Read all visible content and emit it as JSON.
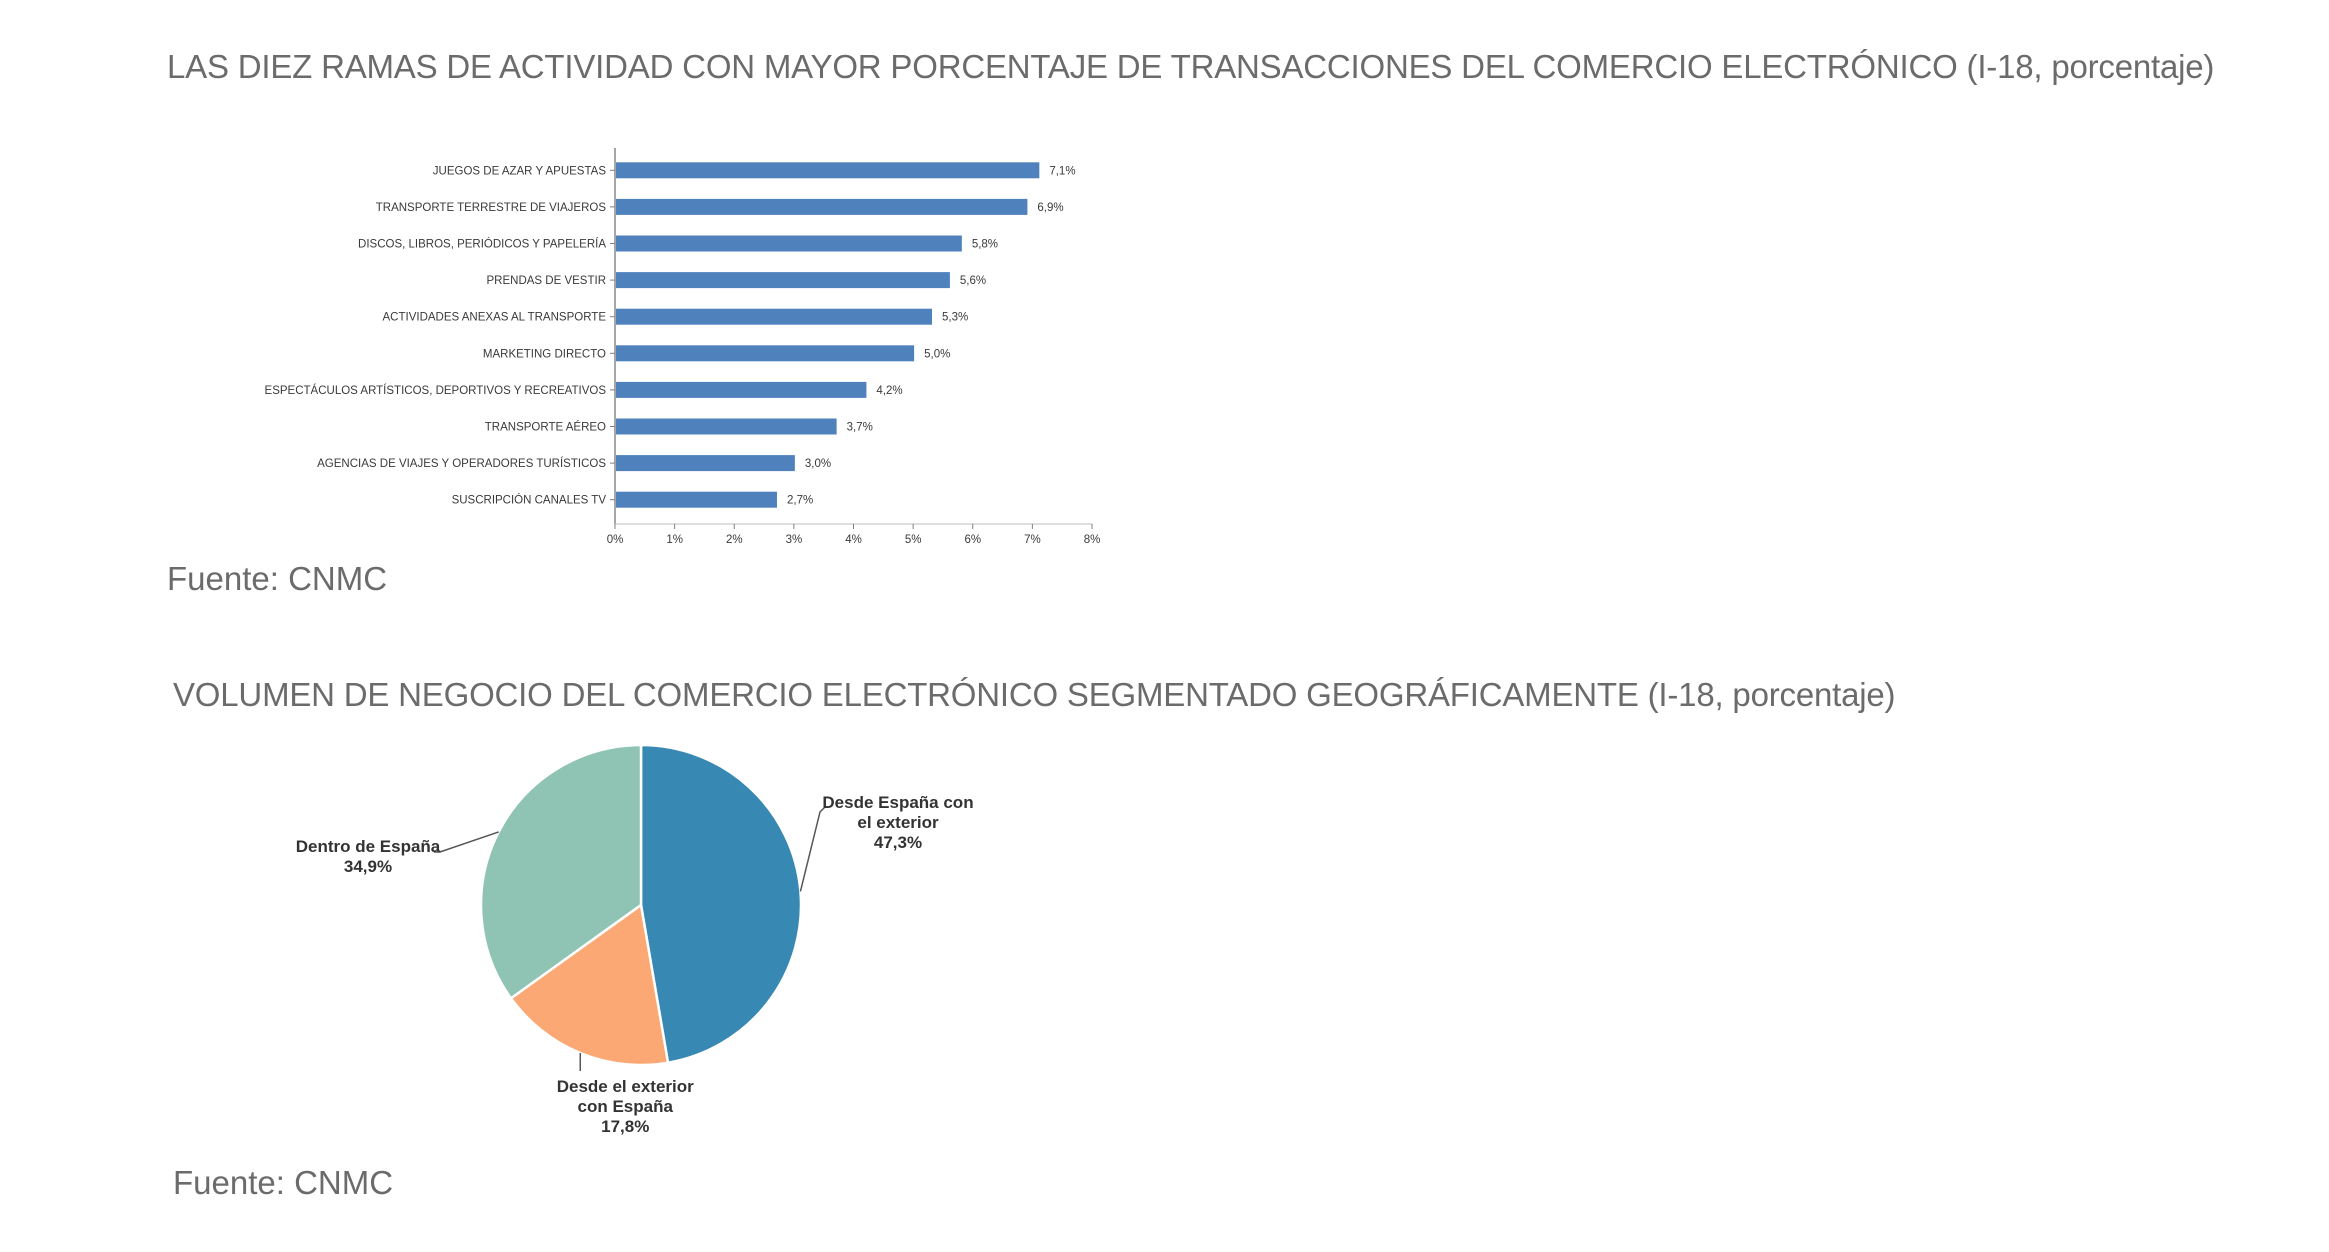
{
  "charts": {
    "bar": {
      "heading": "LAS DIEZ RAMAS DE ACTIVIDAD CON MAYOR PORCENTAJE DE TRANSACCIONES DEL COMERCIO ELECTRÓNICO (I-18, porcentaje)",
      "source": "Fuente: CNMC"
    },
    "pie": {
      "heading": "VOLUMEN DE NEGOCIO DEL COMERCIO ELECTRÓNICO SEGMENTADO GEOGRÁFICAMENTE (I-18, porcentaje)",
      "source": "Fuente: CNMC"
    }
  },
  "chart_data": [
    {
      "type": "bar",
      "orientation": "horizontal",
      "title": "LAS DIEZ RAMAS DE ACTIVIDAD CON MAYOR PORCENTAJE DE TRANSACCIONES DEL COMERCIO ELECTRÓNICO (I-18, porcentaje)",
      "categories": [
        "JUEGOS DE AZAR Y APUESTAS",
        "TRANSPORTE TERRESTRE DE VIAJEROS",
        "DISCOS, LIBROS, PERIÓDICOS Y PAPELERÍA",
        "PRENDAS DE VESTIR",
        "ACTIVIDADES ANEXAS AL TRANSPORTE",
        "MARKETING DIRECTO",
        "ESPECTÁCULOS ARTÍSTICOS, DEPORTIVOS Y RECREATIVOS",
        "TRANSPORTE AÉREO",
        "AGENCIAS DE VIAJES Y OPERADORES TURÍSTICOS",
        "SUSCRIPCIÓN CANALES TV"
      ],
      "values": [
        7.1,
        6.9,
        5.8,
        5.6,
        5.3,
        5.0,
        4.2,
        3.7,
        3.0,
        2.7
      ],
      "value_labels": [
        "7,1%",
        "6,9%",
        "5,8%",
        "5,6%",
        "5,3%",
        "5,0%",
        "4,2%",
        "3,7%",
        "3,0%",
        "2,7%"
      ],
      "xlim": [
        0,
        8
      ],
      "x_ticks": [
        "0%",
        "1%",
        "2%",
        "3%",
        "4%",
        "5%",
        "6%",
        "7%",
        "8%"
      ],
      "xlabel": "",
      "ylabel": "",
      "bar_color": "#4f81bd",
      "grid": false
    },
    {
      "type": "pie",
      "title": "VOLUMEN DE NEGOCIO DEL COMERCIO ELECTRÓNICO SEGMENTADO GEOGRÁFICAMENTE (I-18, porcentaje)",
      "slices": [
        {
          "label_lines": [
            "Desde España con",
            "el exterior",
            "47,3%"
          ],
          "value": 47.3,
          "color": "#3888b4"
        },
        {
          "label_lines": [
            "Desde el exterior",
            "con España",
            "17,8%"
          ],
          "value": 17.8,
          "color": "#fba874"
        },
        {
          "label_lines": [
            "Dentro de España",
            "34,9%"
          ],
          "value": 34.9,
          "color": "#8fc3b4"
        }
      ],
      "start": "top",
      "direction": "clockwise"
    }
  ]
}
